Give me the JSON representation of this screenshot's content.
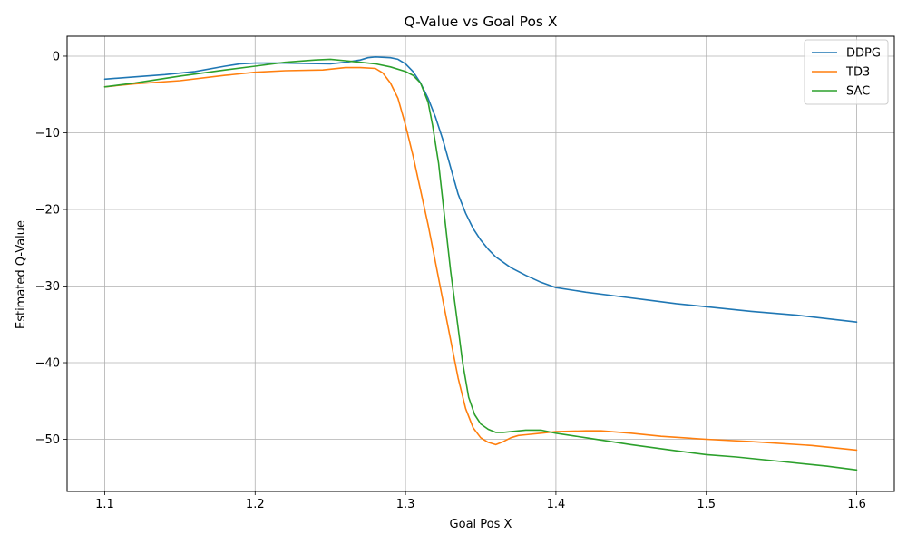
{
  "chart_data": {
    "type": "line",
    "title": "Q-Value vs Goal Pos X",
    "xlabel": "Goal Pos X",
    "ylabel": "Estimated Q-Value",
    "xlim": [
      1.075,
      1.625
    ],
    "ylim": [
      -56.8,
      2.6
    ],
    "xticks": [
      1.1,
      1.2,
      1.3,
      1.4,
      1.5,
      1.6
    ],
    "yticks": [
      0,
      -10,
      -20,
      -30,
      -40,
      -50
    ],
    "xtick_labels": [
      "1.1",
      "1.2",
      "1.3",
      "1.4",
      "1.5",
      "1.6"
    ],
    "ytick_labels": [
      "0",
      "−10",
      "−20",
      "−30",
      "−40",
      "−50"
    ],
    "grid": true,
    "legend_position": "top-right",
    "series": [
      {
        "name": "DDPG",
        "color": "#1f77b4",
        "x": [
          1.1,
          1.12,
          1.14,
          1.16,
          1.18,
          1.19,
          1.2,
          1.22,
          1.25,
          1.26,
          1.27,
          1.275,
          1.28,
          1.29,
          1.295,
          1.3,
          1.305,
          1.31,
          1.315,
          1.32,
          1.325,
          1.33,
          1.335,
          1.34,
          1.345,
          1.35,
          1.355,
          1.36,
          1.37,
          1.38,
          1.39,
          1.4,
          1.42,
          1.44,
          1.46,
          1.48,
          1.5,
          1.53,
          1.56,
          1.6
        ],
        "y": [
          -3.0,
          -2.7,
          -2.4,
          -2.0,
          -1.3,
          -1.0,
          -0.9,
          -0.9,
          -1.0,
          -0.8,
          -0.5,
          -0.2,
          -0.1,
          -0.2,
          -0.4,
          -1.0,
          -2.0,
          -3.5,
          -5.5,
          -8.0,
          -11.0,
          -14.5,
          -18.0,
          -20.5,
          -22.5,
          -24.0,
          -25.2,
          -26.2,
          -27.6,
          -28.6,
          -29.5,
          -30.2,
          -30.8,
          -31.3,
          -31.8,
          -32.3,
          -32.7,
          -33.3,
          -33.8,
          -34.7
        ]
      },
      {
        "name": "TD3",
        "color": "#ff7f0e",
        "x": [
          1.1,
          1.12,
          1.15,
          1.18,
          1.2,
          1.22,
          1.245,
          1.25,
          1.26,
          1.27,
          1.28,
          1.285,
          1.29,
          1.295,
          1.3,
          1.305,
          1.31,
          1.315,
          1.32,
          1.325,
          1.33,
          1.335,
          1.34,
          1.345,
          1.35,
          1.355,
          1.36,
          1.365,
          1.37,
          1.375,
          1.38,
          1.39,
          1.4,
          1.42,
          1.43,
          1.45,
          1.47,
          1.5,
          1.53,
          1.57,
          1.6
        ],
        "y": [
          -4.0,
          -3.6,
          -3.2,
          -2.5,
          -2.1,
          -1.9,
          -1.8,
          -1.7,
          -1.5,
          -1.5,
          -1.6,
          -2.2,
          -3.5,
          -5.5,
          -9.0,
          -13.0,
          -17.5,
          -22.0,
          -27.0,
          -32.0,
          -37.0,
          -42.0,
          -46.0,
          -48.5,
          -49.8,
          -50.4,
          -50.7,
          -50.3,
          -49.8,
          -49.5,
          -49.4,
          -49.2,
          -49.0,
          -48.9,
          -48.9,
          -49.2,
          -49.6,
          -50.0,
          -50.3,
          -50.8,
          -51.4
        ]
      },
      {
        "name": "SAC",
        "color": "#2ca02c",
        "x": [
          1.1,
          1.12,
          1.15,
          1.18,
          1.2,
          1.22,
          1.24,
          1.25,
          1.26,
          1.27,
          1.28,
          1.29,
          1.3,
          1.305,
          1.31,
          1.315,
          1.318,
          1.322,
          1.326,
          1.33,
          1.334,
          1.338,
          1.342,
          1.346,
          1.35,
          1.355,
          1.36,
          1.365,
          1.37,
          1.38,
          1.39,
          1.4,
          1.42,
          1.45,
          1.48,
          1.5,
          1.52,
          1.55,
          1.58,
          1.6
        ],
        "y": [
          -4.0,
          -3.5,
          -2.6,
          -1.8,
          -1.3,
          -0.8,
          -0.5,
          -0.4,
          -0.6,
          -0.8,
          -1.0,
          -1.4,
          -2.0,
          -2.5,
          -3.5,
          -6.0,
          -9.0,
          -14.0,
          -21.0,
          -28.0,
          -34.0,
          -40.0,
          -44.5,
          -46.8,
          -48.0,
          -48.7,
          -49.1,
          -49.1,
          -49.0,
          -48.8,
          -48.8,
          -49.2,
          -49.8,
          -50.7,
          -51.5,
          -52.0,
          -52.3,
          -52.9,
          -53.5,
          -54.0
        ]
      }
    ]
  }
}
